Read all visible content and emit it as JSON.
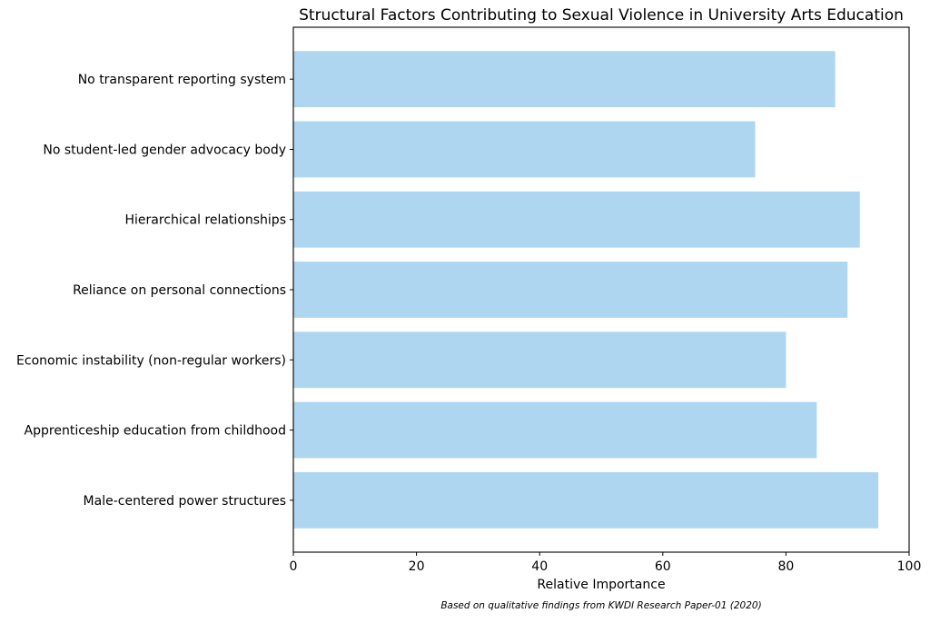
{
  "chart_data": {
    "type": "bar",
    "orientation": "horizontal",
    "title": "Structural Factors Contributing to Sexual Violence in University Arts Education",
    "xlabel": "Relative Importance",
    "ylabel": "",
    "xlim": [
      0,
      100
    ],
    "xticks": [
      0,
      20,
      40,
      60,
      80,
      100
    ],
    "categories": [
      "No transparent reporting system",
      "No student-led gender advocacy body",
      "Hierarchical relationships",
      "Reliance on personal connections",
      "Economic instability (non-regular workers)",
      "Apprenticeship education from childhood",
      "Male-centered power structures"
    ],
    "values": [
      88,
      75,
      92,
      90,
      80,
      85,
      95
    ],
    "bar_color": "#AED6F1",
    "grid": false,
    "legend": "none",
    "footnote": "Based on qualitative findings from KWDI Research Paper-01 (2020)"
  }
}
